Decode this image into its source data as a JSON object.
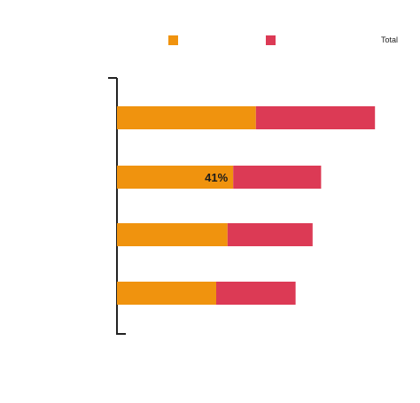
{
  "chart_data": {
    "type": "bar",
    "orientation": "horizontal",
    "stacked": true,
    "title": "",
    "categories": [
      "",
      "",
      "",
      ""
    ],
    "series": [
      {
        "name": "",
        "color": "#f0930e",
        "values": [
          49,
          41,
          39,
          35
        ]
      },
      {
        "name": "",
        "color": "#dc3a55",
        "values": [
          42,
          31,
          30,
          28
        ]
      }
    ],
    "value_labels": [
      [
        "",
        "",
        "",
        ""
      ],
      [
        "",
        "",
        "",
        ""
      ]
    ],
    "total_label": "Total",
    "totals": [
      91,
      72,
      69,
      63
    ],
    "total_labels": [
      "",
      "",
      "",
      ""
    ],
    "xlim": [
      0,
      100
    ],
    "grid": false,
    "legend_position": "top-right"
  },
  "labels": {
    "bar_value_41": "41%"
  },
  "footnote": [
    "",
    "",
    ""
  ]
}
